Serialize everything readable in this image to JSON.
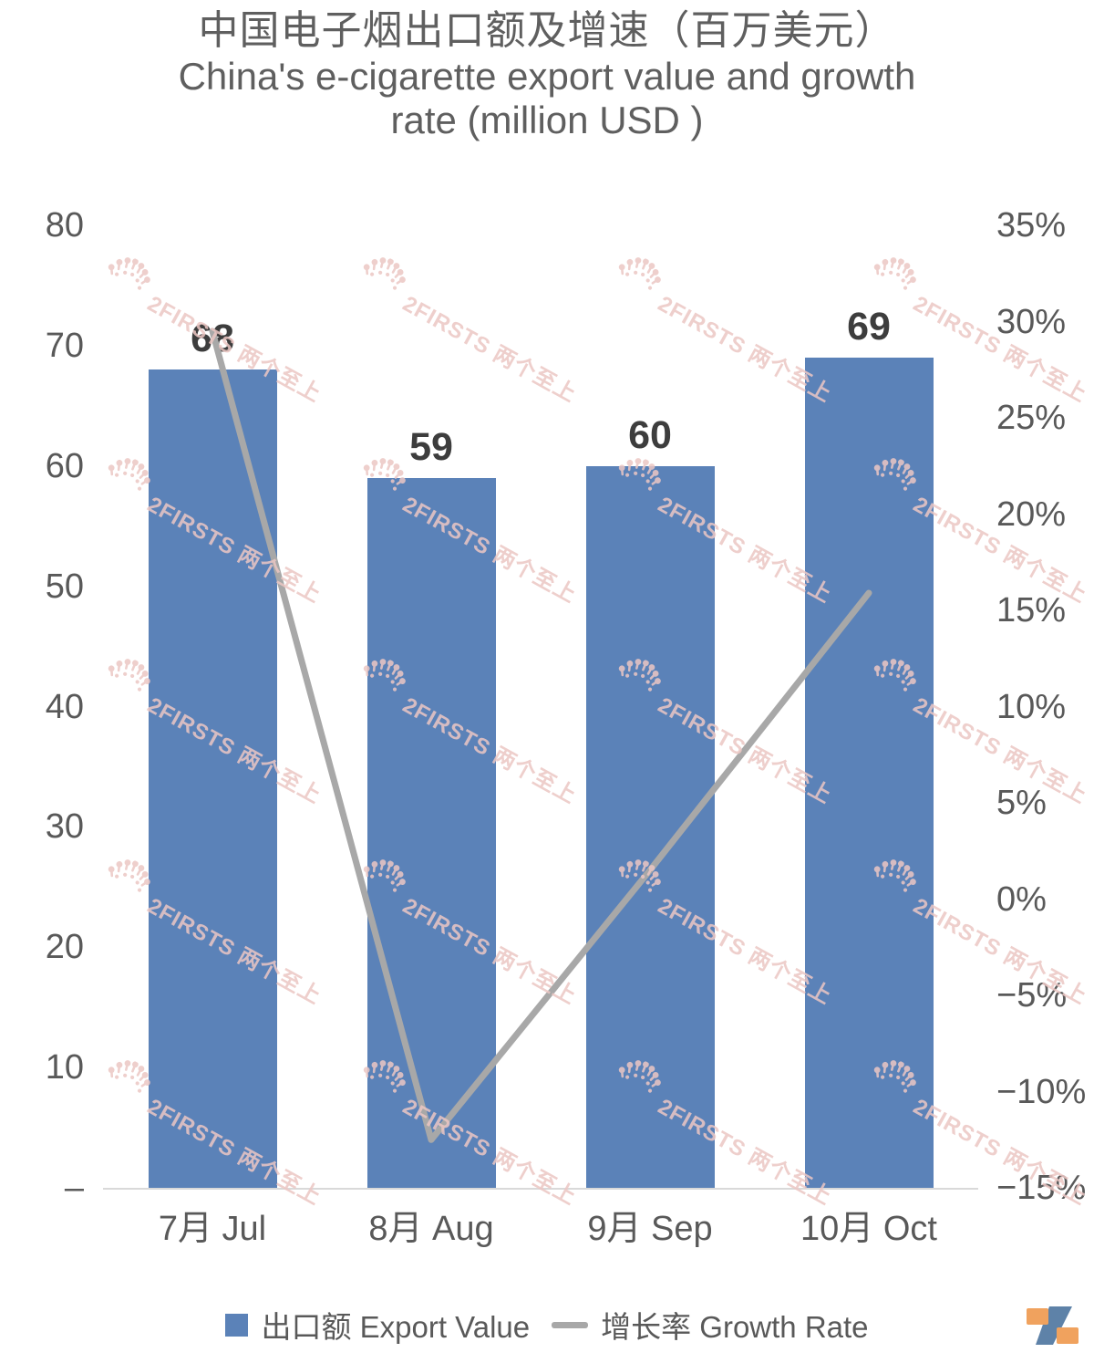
{
  "title": {
    "zh": "中国电子烟出口额及增速（百万美元）",
    "en_line1": "China's e-cigarette export value and growth",
    "en_line2": "rate (million USD )"
  },
  "chart_data": {
    "type": "bar",
    "subtype": "combo-bar-line-dual-axis",
    "categories": [
      "7月 Jul",
      "8月 Aug",
      "9月 Sep",
      "10月 Oct"
    ],
    "series": [
      {
        "name": "出口额 Export Value",
        "type": "bar",
        "axis": "left",
        "values": [
          68,
          59,
          60,
          69
        ],
        "color": "#5b82b8"
      },
      {
        "name": "增长率 Growth Rate",
        "type": "line",
        "axis": "right",
        "values_pct": [
          29.5,
          -12.5,
          1.5,
          15.9
        ],
        "color": "#a8a8a8"
      }
    ],
    "bar_value_labels": [
      "68",
      "59",
      "60",
      "69"
    ],
    "left_axis": {
      "min": 0,
      "max": 80,
      "step": 10,
      "ticks": [
        "80",
        "70",
        "60",
        "50",
        "40",
        "30",
        "20",
        "10",
        "–"
      ]
    },
    "right_axis": {
      "min": -15,
      "max": 35,
      "step": 5,
      "format": "percent",
      "ticks": [
        "35%",
        "30%",
        "25%",
        "20%",
        "15%",
        "10%",
        "5%",
        "0%",
        "−5%",
        "−10%",
        "−15%"
      ]
    },
    "grid": "off",
    "legend_position": "bottom-center"
  },
  "legend": {
    "bar": "出口额 Export Value",
    "line": "增长率 Growth Rate"
  },
  "watermark": {
    "text": "2FIRSTS 两个至上",
    "color": "#ecc7c4"
  },
  "colors": {
    "bar_blue": "#5b82b8",
    "line_gray": "#a8a8a8",
    "axis_text": "#595959",
    "value_label": "#3d3d3d",
    "baseline": "#d9d9d9",
    "logo_orange": "#f0a25e",
    "logo_blue": "#5e82a8"
  }
}
